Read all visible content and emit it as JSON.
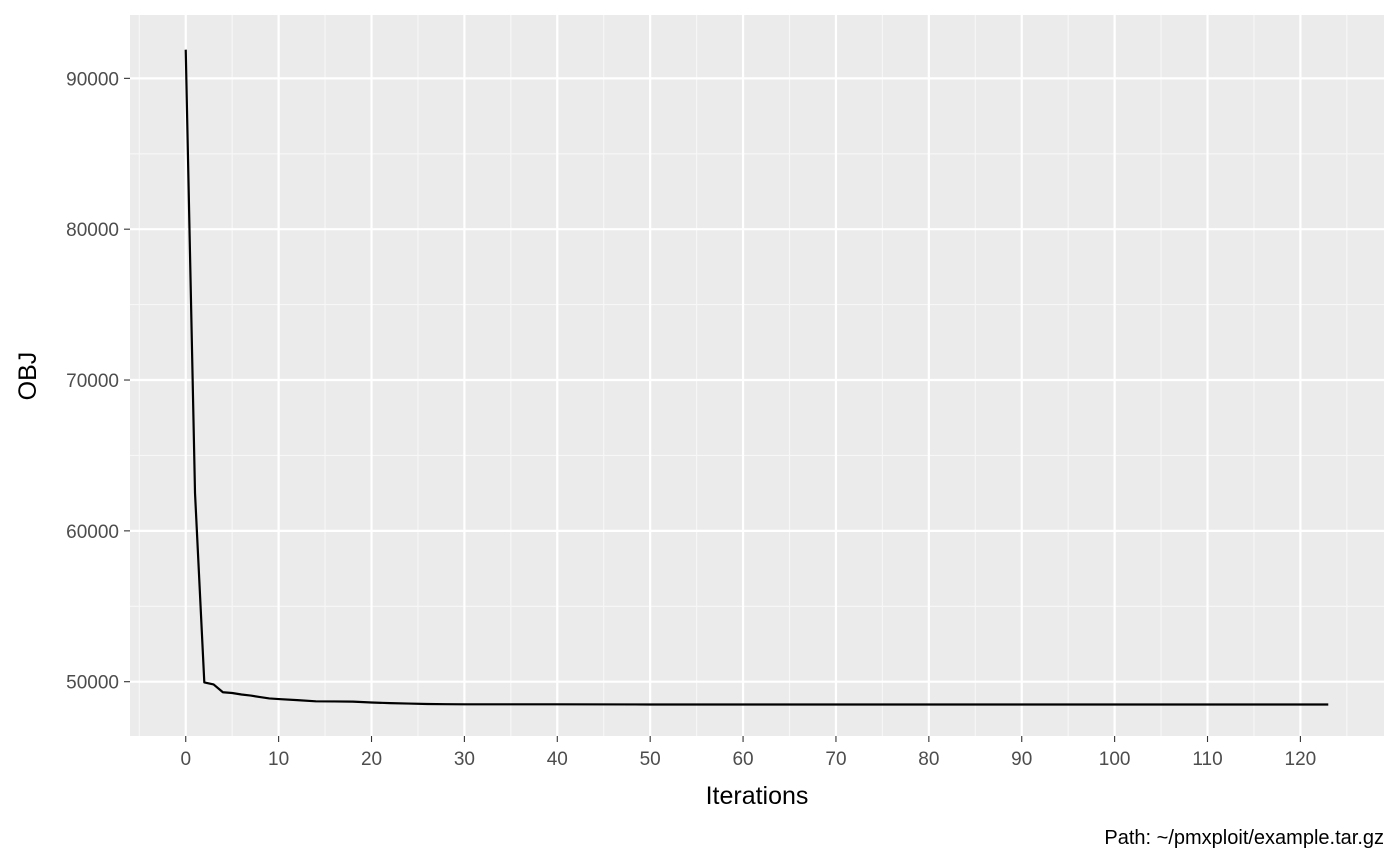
{
  "chart_data": {
    "type": "line",
    "title": "",
    "xlabel": "Iterations",
    "ylabel": "OBJ",
    "caption": "Path: ~/pmxploit/example.tar.gz",
    "xlim": [
      -6,
      129
    ],
    "ylim": [
      46400,
      94200
    ],
    "x_ticks": [
      0,
      10,
      20,
      30,
      40,
      50,
      60,
      70,
      80,
      90,
      100,
      110,
      120
    ],
    "x_tick_labels": [
      "0",
      "10",
      "20",
      "30",
      "40",
      "50",
      "60",
      "70",
      "80",
      "90",
      "100",
      "110",
      "120"
    ],
    "y_ticks": [
      50000,
      60000,
      70000,
      80000,
      90000
    ],
    "y_tick_labels": [
      "50000",
      "60000",
      "70000",
      "80000",
      "90000"
    ],
    "grid": true,
    "series": [
      {
        "x": [
          0,
          1,
          2,
          3,
          4,
          5,
          6,
          7,
          8,
          9,
          10,
          12,
          14,
          16,
          18,
          20,
          22,
          24,
          26,
          28,
          30,
          40,
          50,
          60,
          70,
          80,
          90,
          100,
          110,
          123
        ],
        "y": [
          91900,
          62500,
          49950,
          49820,
          49300,
          49250,
          49150,
          49080,
          48980,
          48890,
          48850,
          48780,
          48700,
          48690,
          48680,
          48620,
          48580,
          48550,
          48520,
          48510,
          48500,
          48500,
          48490,
          48490,
          48490,
          48490,
          48490,
          48490,
          48490,
          48490
        ],
        "color": "#000000"
      }
    ],
    "colors": {
      "panel_background": "#ebebeb",
      "grid_major": "#ffffff",
      "grid_minor": "#f7f7f7",
      "tick_text": "#4d4d4d",
      "tick_mark": "#333333"
    }
  }
}
